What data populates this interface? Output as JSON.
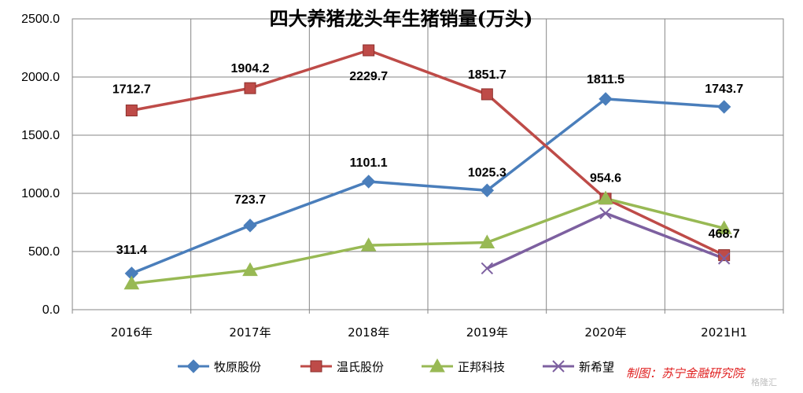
{
  "chart_data": {
    "type": "line",
    "title": "四大养猪龙头年生猪销量(万头)",
    "categories": [
      "2016年",
      "2017年",
      "2018年",
      "2019年",
      "2020年",
      "2021H1"
    ],
    "ylim": [
      0,
      2500
    ],
    "yticks": [
      "0.0",
      "500.0",
      "1000.0",
      "1500.0",
      "2000.0",
      "2500.0"
    ],
    "grid": true,
    "legend_position": "bottom",
    "series": [
      {
        "name": "牧原股份",
        "color": "#4a7ebb",
        "marker": "diamond",
        "values": [
          311.4,
          723.7,
          1101.1,
          1025.3,
          1811.5,
          1743.7
        ],
        "labels": [
          "311.4",
          "723.7",
          "1101.1",
          "1025.3",
          "1811.5",
          "1743.7"
        ]
      },
      {
        "name": "温氏股份",
        "color": "#be4b48",
        "marker": "square",
        "values": [
          1712.7,
          1904.2,
          2229.7,
          1851.7,
          954.6,
          468.7
        ],
        "labels": [
          "1712.7",
          "1904.2",
          "2229.7",
          "1851.7",
          "954.6",
          "468.7"
        ]
      },
      {
        "name": "正邦科技",
        "color": "#98b954",
        "marker": "triangle",
        "values": [
          225,
          340,
          553,
          578,
          956,
          700
        ],
        "labels": null
      },
      {
        "name": "新希望",
        "color": "#7d60a0",
        "marker": "x",
        "values": [
          null,
          null,
          null,
          355,
          829,
          440
        ],
        "labels": null
      }
    ]
  },
  "source_note": "制图：苏宁金融研究院",
  "watermark": "格隆汇"
}
